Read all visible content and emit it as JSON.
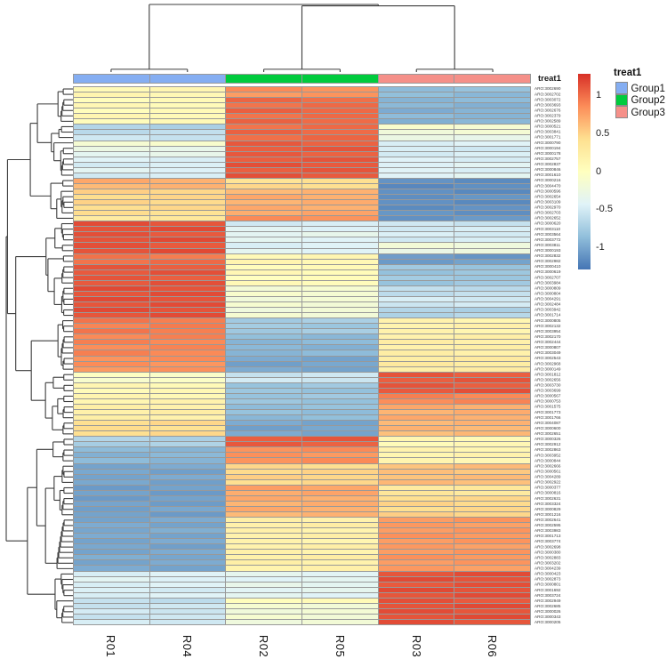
{
  "annotation_label": "treat1",
  "legend": {
    "title": "treat1",
    "groups": [
      {
        "label": "Group1",
        "color": "#85AEF2"
      },
      {
        "label": "Group2",
        "color": "#00CB3D"
      },
      {
        "label": "Group3",
        "color": "#F59089"
      }
    ]
  },
  "colorbar": {
    "ticks": [
      "1",
      "0.5",
      "0",
      "-0.5",
      "-1"
    ],
    "tick_values": [
      1,
      0.5,
      0,
      -0.5,
      -1
    ],
    "domain": [
      -1.29,
      1.29
    ],
    "palette": [
      "#4575B4",
      "#91BFDB",
      "#E0F3F8",
      "#FFFFBF",
      "#FEE090",
      "#FC8D59",
      "#D73027"
    ]
  },
  "chart_data": {
    "type": "heatmap",
    "columns": [
      "R01",
      "R04",
      "R02",
      "R05",
      "R03",
      "R06"
    ],
    "column_groups": [
      "Group1",
      "Group1",
      "Group2",
      "Group2",
      "Group3",
      "Group3"
    ],
    "grid_color": "#999999",
    "dendrogram_color": "#3c3c3c",
    "replicate_jitter": 0.025,
    "value_note": "row-scaled z-scores; g = [Group1, Group2, Group3] mean values",
    "rows": [
      {
        "label": "ARO:3002690",
        "g": [
          0.1,
          0.85,
          -0.85
        ]
      },
      {
        "label": "ARO:3002702",
        "g": [
          0.12,
          0.8,
          -0.88
        ]
      },
      {
        "label": "ARO:3003072",
        "g": [
          0.05,
          1.02,
          -0.9
        ]
      },
      {
        "label": "ARO:3003693",
        "g": [
          0.08,
          1.0,
          -0.92
        ]
      },
      {
        "label": "ARO:3002676",
        "g": [
          0.05,
          1.05,
          -0.95
        ]
      },
      {
        "label": "ARO:3002379",
        "g": [
          0.1,
          1.0,
          -0.9
        ]
      },
      {
        "label": "ARO:3002589",
        "g": [
          0.06,
          1.04,
          -0.93
        ]
      },
      {
        "label": "ARO:3000521",
        "g": [
          -0.7,
          1.0,
          -0.12
        ]
      },
      {
        "label": "ARO:3003841",
        "g": [
          -0.62,
          1.04,
          -0.18
        ]
      },
      {
        "label": "ARO:3001771",
        "g": [
          -0.55,
          1.02,
          -0.3
        ]
      },
      {
        "label": "ARO:3000790",
        "g": [
          -0.12,
          1.08,
          -0.45
        ]
      },
      {
        "label": "ARO:3000194",
        "g": [
          -0.3,
          1.1,
          -0.5
        ]
      },
      {
        "label": "ARO:3000178",
        "g": [
          -0.35,
          1.08,
          -0.48
        ]
      },
      {
        "label": "ARO:3002757",
        "g": [
          -0.45,
          1.1,
          -0.46
        ]
      },
      {
        "label": "ARO:3002837",
        "g": [
          -0.48,
          1.12,
          -0.42
        ]
      },
      {
        "label": "ARO:3000846",
        "g": [
          -0.42,
          1.1,
          -0.45
        ]
      },
      {
        "label": "ARO:3001610",
        "g": [
          -0.5,
          1.12,
          -0.4
        ]
      },
      {
        "label": "ARO:3000216",
        "g": [
          0.7,
          0.4,
          -1.14
        ]
      },
      {
        "label": "ARO:3004470",
        "g": [
          0.65,
          0.45,
          -1.16
        ]
      },
      {
        "label": "ARO:3000596",
        "g": [
          0.5,
          0.65,
          -1.15
        ]
      },
      {
        "label": "ARO:3002654",
        "g": [
          0.46,
          0.7,
          -1.12
        ]
      },
      {
        "label": "ARO:3003109",
        "g": [
          0.48,
          0.68,
          -1.15
        ]
      },
      {
        "label": "ARO:3002970",
        "g": [
          0.45,
          0.7,
          -1.14
        ]
      },
      {
        "label": "ARO:3002703",
        "g": [
          0.42,
          0.72,
          -1.12
        ]
      },
      {
        "label": "ARO:3002652",
        "g": [
          0.3,
          0.85,
          -1.1
        ]
      },
      {
        "label": "ARO:3000620",
        "g": [
          1.14,
          -0.5,
          -0.55
        ]
      },
      {
        "label": "ARO:3003110",
        "g": [
          1.15,
          -0.42,
          -0.5
        ]
      },
      {
        "label": "ARO:3003564",
        "g": [
          1.12,
          -0.36,
          -0.48
        ]
      },
      {
        "label": "ARO:3003772",
        "g": [
          1.15,
          -0.4,
          -0.5
        ]
      },
      {
        "label": "ARO:3003811",
        "g": [
          1.12,
          -0.45,
          -0.2
        ]
      },
      {
        "label": "ARO:3000193",
        "g": [
          1.15,
          -0.4,
          -0.26
        ]
      },
      {
        "label": "ARO:3002832",
        "g": [
          0.96,
          0.1,
          -1.08
        ]
      },
      {
        "label": "ARO:3002982",
        "g": [
          1.0,
          0.12,
          -1.05
        ]
      },
      {
        "label": "ARO:3000410",
        "g": [
          1.1,
          0.05,
          -0.8
        ]
      },
      {
        "label": "ARO:3000619",
        "g": [
          1.12,
          0.08,
          -0.82
        ]
      },
      {
        "label": "ARO:3002707",
        "g": [
          1.1,
          0.02,
          -0.78
        ]
      },
      {
        "label": "ARO:3003984",
        "g": [
          1.12,
          0.06,
          -0.8
        ]
      },
      {
        "label": "ARO:3000809",
        "g": [
          1.15,
          -0.15,
          -0.62
        ]
      },
      {
        "label": "ARO:3000804",
        "g": [
          1.14,
          -0.12,
          -0.6
        ]
      },
      {
        "label": "ARO:3004291",
        "g": [
          1.15,
          -0.18,
          -0.5
        ]
      },
      {
        "label": "ARO:3002484",
        "g": [
          1.14,
          -0.15,
          -0.52
        ]
      },
      {
        "label": "ARO:3003942",
        "g": [
          1.15,
          -0.2,
          -0.7
        ]
      },
      {
        "label": "ARO:3001714",
        "g": [
          1.14,
          -0.16,
          -0.68
        ]
      },
      {
        "label": "ARO:3000805",
        "g": [
          0.95,
          -0.75,
          0.15
        ]
      },
      {
        "label": "ARO:3002132",
        "g": [
          0.92,
          -0.78,
          0.18
        ]
      },
      {
        "label": "ARO:3003954",
        "g": [
          0.95,
          -0.76,
          0.15
        ]
      },
      {
        "label": "ARO:3002170",
        "g": [
          0.9,
          -0.88,
          0.2
        ]
      },
      {
        "label": "ARO:3002444",
        "g": [
          0.9,
          -0.9,
          0.22
        ]
      },
      {
        "label": "ARO:3000807",
        "g": [
          0.88,
          -0.92,
          0.2
        ]
      },
      {
        "label": "ARO:3003049",
        "g": [
          0.9,
          -0.9,
          0.22
        ]
      },
      {
        "label": "ARO:3002543",
        "g": [
          0.85,
          -1.0,
          0.26
        ]
      },
      {
        "label": "ARO:3002968",
        "g": [
          0.84,
          -1.02,
          0.28
        ]
      },
      {
        "label": "ARO:3000149",
        "g": [
          0.82,
          -1.0,
          0.25
        ]
      },
      {
        "label": "ARO:3001812",
        "g": [
          -0.05,
          -0.55,
          1.1
        ]
      },
      {
        "label": "ARO:3002656",
        "g": [
          -0.08,
          -0.52,
          1.1
        ]
      },
      {
        "label": "ARO:3003730",
        "g": [
          0.1,
          -0.8,
          1.1
        ]
      },
      {
        "label": "ARO:3003699",
        "g": [
          0.08,
          -0.82,
          1.12
        ]
      },
      {
        "label": "ARO:3000567",
        "g": [
          0.12,
          -0.8,
          0.9
        ]
      },
      {
        "label": "ARO:3000753",
        "g": [
          0.15,
          -0.82,
          0.88
        ]
      },
      {
        "label": "ARO:3001575",
        "g": [
          0.2,
          -0.85,
          0.7
        ]
      },
      {
        "label": "ARO:3001773",
        "g": [
          0.22,
          -0.85,
          0.68
        ]
      },
      {
        "label": "ARO:3001766",
        "g": [
          0.2,
          -0.88,
          0.7
        ]
      },
      {
        "label": "ARO:3004087",
        "g": [
          0.45,
          -1.0,
          0.65
        ]
      },
      {
        "label": "ARO:3000600",
        "g": [
          0.42,
          -1.02,
          0.65
        ]
      },
      {
        "label": "ARO:3002651",
        "g": [
          0.45,
          -1.0,
          0.62
        ]
      },
      {
        "label": "ARO:3000326",
        "g": [
          -0.7,
          1.1,
          0.1
        ]
      },
      {
        "label": "ARO:3002912",
        "g": [
          -0.72,
          1.08,
          0.08
        ]
      },
      {
        "label": "ARO:3002863",
        "g": [
          -0.9,
          0.85,
          0.15
        ]
      },
      {
        "label": "ARO:3003952",
        "g": [
          -0.92,
          0.82,
          0.15
        ]
      },
      {
        "label": "ARO:3000844",
        "g": [
          -0.9,
          0.85,
          0.12
        ]
      },
      {
        "label": "ARO:3002666",
        "g": [
          -1.0,
          0.45,
          0.6
        ]
      },
      {
        "label": "ARO:3000561",
        "g": [
          -1.02,
          0.48,
          0.58
        ]
      },
      {
        "label": "ARO:3004289",
        "g": [
          -1.0,
          0.5,
          0.6
        ]
      },
      {
        "label": "ARO:3002922",
        "g": [
          -1.02,
          0.45,
          0.62
        ]
      },
      {
        "label": "ARO:3000377",
        "g": [
          -1.05,
          0.75,
          0.3
        ]
      },
      {
        "label": "ARO:3000816",
        "g": [
          -1.05,
          0.72,
          0.32
        ]
      },
      {
        "label": "ARO:3002631",
        "g": [
          -1.05,
          0.7,
          0.45
        ]
      },
      {
        "label": "ARO:3003324",
        "g": [
          -1.04,
          0.68,
          0.48
        ]
      },
      {
        "label": "ARO:3000829",
        "g": [
          -1.02,
          0.7,
          0.45
        ]
      },
      {
        "label": "ARO:3001216",
        "g": [
          -1.05,
          0.65,
          0.5
        ]
      },
      {
        "label": "ARO:3002641",
        "g": [
          -1.0,
          0.2,
          0.8
        ]
      },
      {
        "label": "ARO:3002595",
        "g": [
          -1.0,
          0.22,
          0.78
        ]
      },
      {
        "label": "ARO:3003983",
        "g": [
          -0.98,
          0.18,
          0.8
        ]
      },
      {
        "label": "ARO:3001713",
        "g": [
          -1.0,
          0.2,
          0.82
        ]
      },
      {
        "label": "ARO:3003774",
        "g": [
          -1.0,
          0.15,
          0.8
        ]
      },
      {
        "label": "ARO:3002698",
        "g": [
          -1.02,
          0.2,
          0.78
        ]
      },
      {
        "label": "ARO:3000380",
        "g": [
          -1.0,
          0.18,
          0.8
        ]
      },
      {
        "label": "ARO:3002883",
        "g": [
          -0.98,
          0.22,
          0.82
        ]
      },
      {
        "label": "ARO:3003202",
        "g": [
          -1.0,
          0.2,
          0.8
        ]
      },
      {
        "label": "ARO:3004239",
        "g": [
          -1.0,
          0.18,
          0.78
        ]
      },
      {
        "label": "ARO:3000423",
        "g": [
          -0.45,
          -0.38,
          1.14
        ]
      },
      {
        "label": "ARO:3002873",
        "g": [
          -0.42,
          -0.4,
          1.15
        ]
      },
      {
        "label": "ARO:3000801",
        "g": [
          -0.45,
          -0.35,
          1.12
        ]
      },
      {
        "label": "ARO:3001692",
        "g": [
          -0.48,
          -0.38,
          1.15
        ]
      },
      {
        "label": "ARO:3003724",
        "g": [
          -0.45,
          -0.4,
          1.14
        ]
      },
      {
        "label": "ARO:3002949",
        "g": [
          -0.6,
          0.05,
          1.12
        ]
      },
      {
        "label": "ARO:3002685",
        "g": [
          -0.55,
          -0.15,
          1.15
        ]
      },
      {
        "label": "ARO:3000026",
        "g": [
          -0.52,
          -0.18,
          1.14
        ]
      },
      {
        "label": "ARO:3000343",
        "g": [
          -0.55,
          -0.15,
          1.15
        ]
      },
      {
        "label": "ARO:3000205",
        "g": [
          -0.5,
          -0.2,
          1.14
        ]
      }
    ]
  }
}
